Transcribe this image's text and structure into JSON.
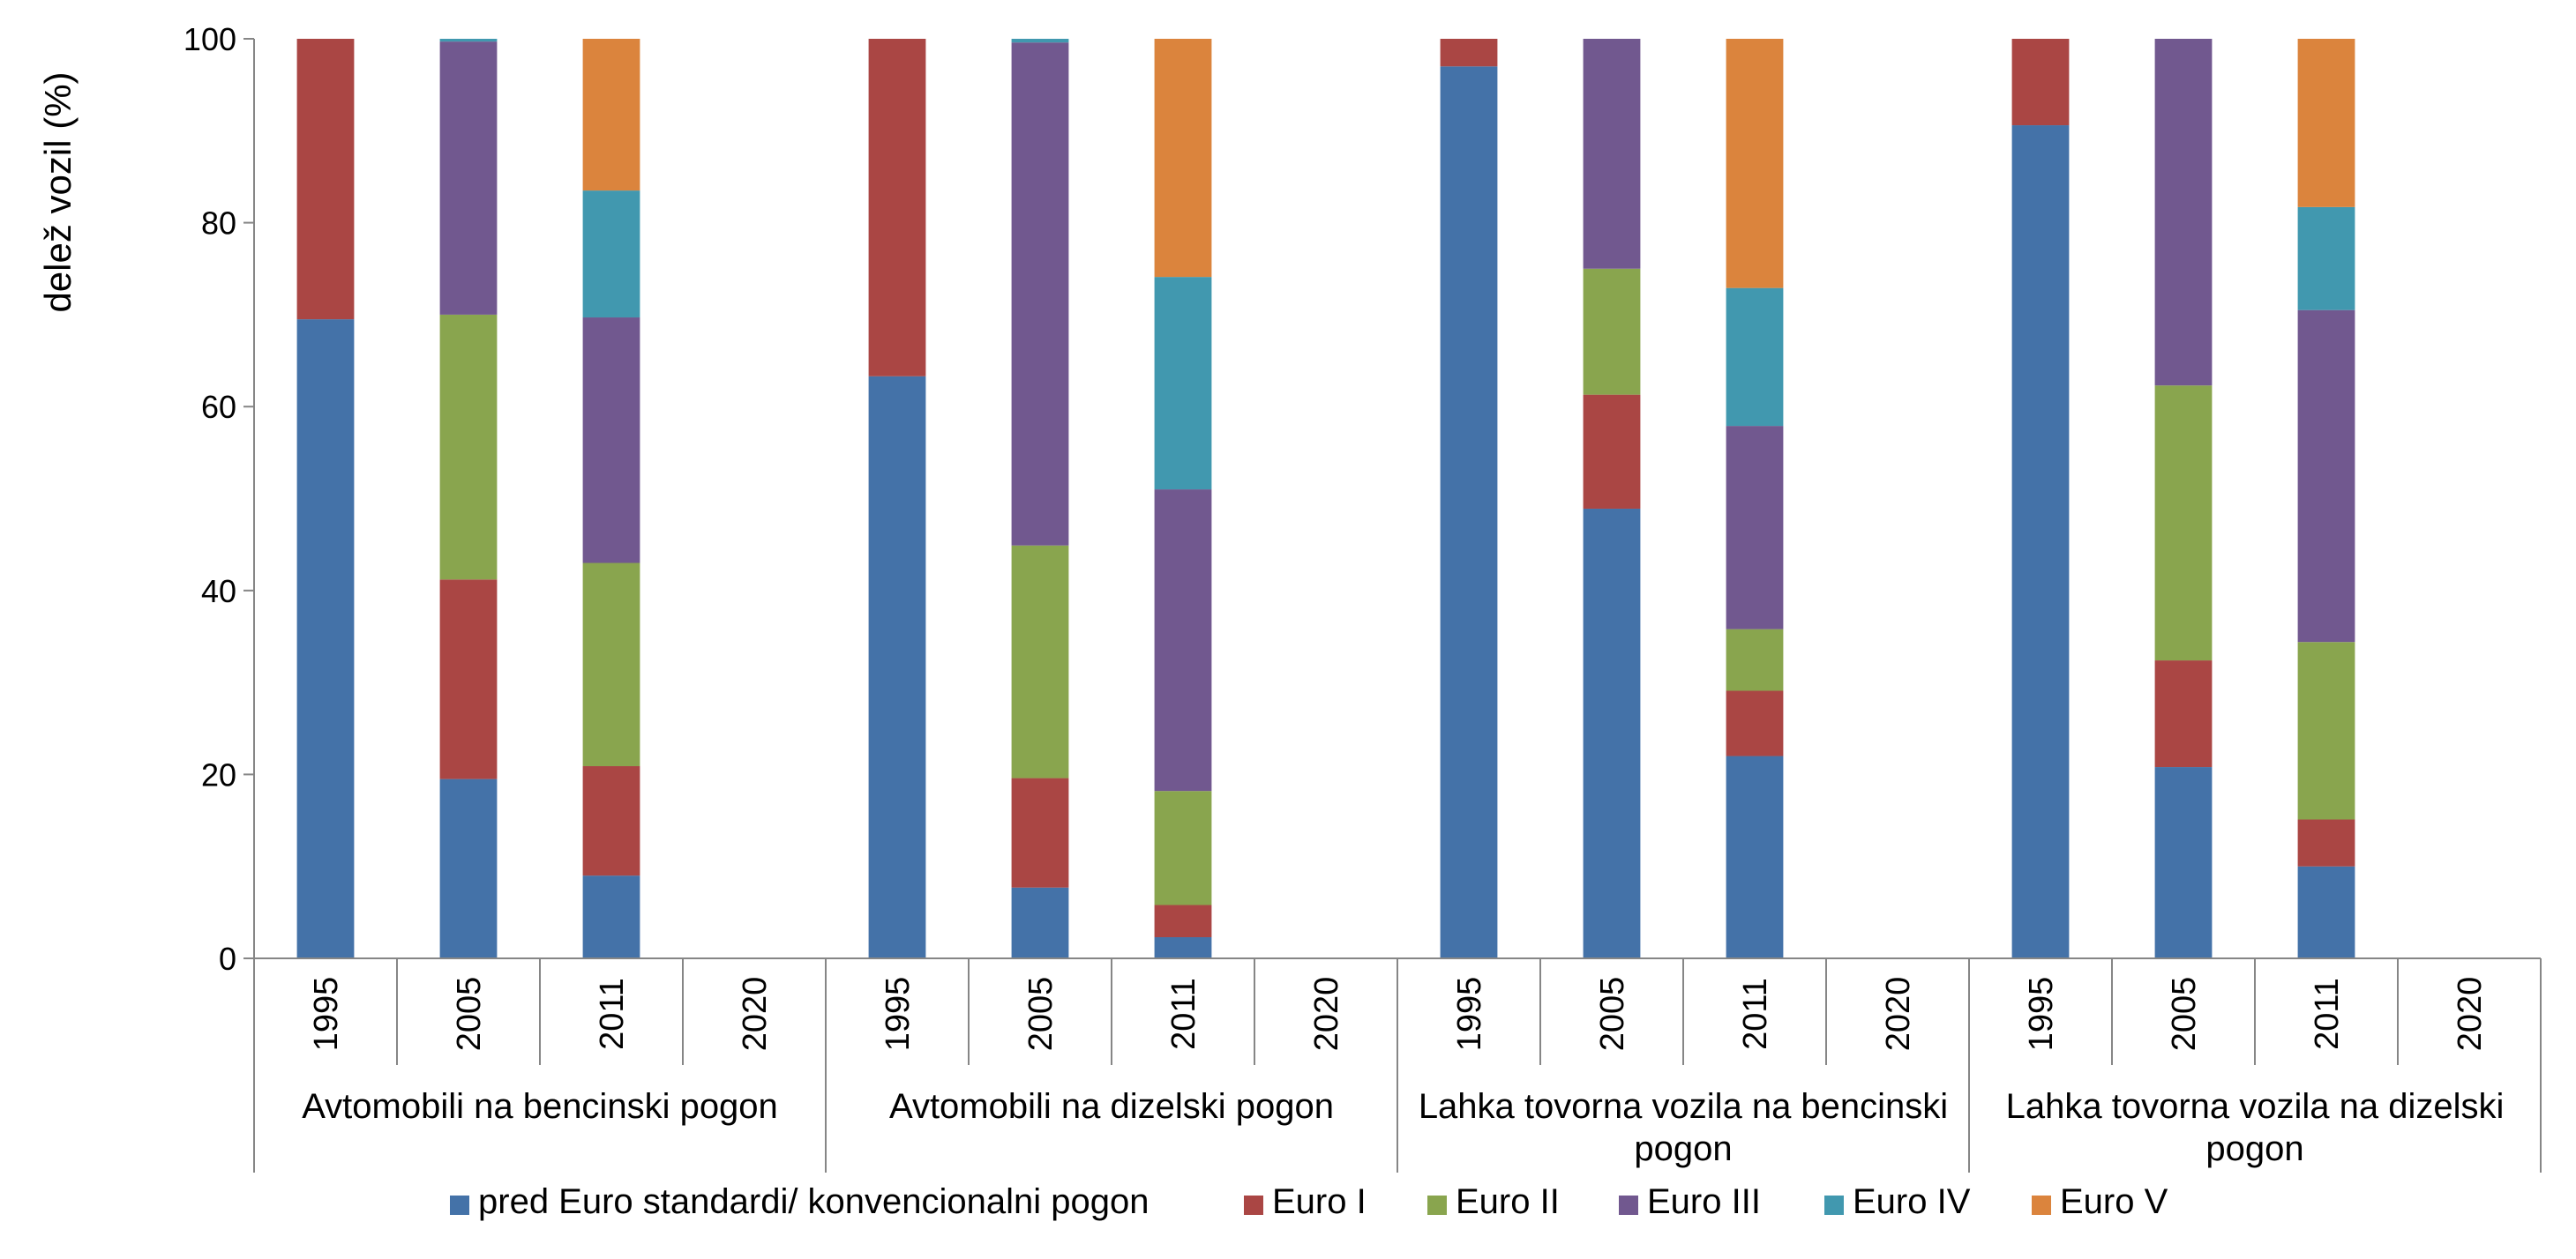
{
  "chart_data": {
    "type": "bar",
    "stacked": true,
    "ylabel": "delež  vozil (%)",
    "xlabel": "",
    "ylim": [
      0,
      100
    ],
    "yticks": [
      "0",
      "20",
      "40",
      "60",
      "80",
      "100"
    ],
    "grid": false,
    "legend_position": "bottom",
    "groups": [
      {
        "label_lines": [
          "Avtomobili na bencinski pogon"
        ],
        "categories": [
          "1995",
          "2005",
          "2011",
          "2020"
        ]
      },
      {
        "label_lines": [
          "Avtomobili na dizelski pogon"
        ],
        "categories": [
          "1995",
          "2005",
          "2011",
          "2020"
        ]
      },
      {
        "label_lines": [
          "Lahka tovorna vozila na bencinski",
          "pogon"
        ],
        "categories": [
          "1995",
          "2005",
          "2011",
          "2020"
        ]
      },
      {
        "label_lines": [
          "Lahka tovorna vozila na dizelski",
          "pogon"
        ],
        "categories": [
          "1995",
          "2005",
          "2011",
          "2020"
        ]
      }
    ],
    "series": [
      {
        "name": "pred Euro standardi/ konvencionalni  pogon",
        "color": "#4472A8",
        "values": [
          69.5,
          19.5,
          9,
          0,
          63.3,
          7.7,
          2.3,
          0,
          97,
          48.9,
          22,
          0,
          90.6,
          20.8,
          10,
          0
        ]
      },
      {
        "name": "Euro I",
        "color": "#AA4644",
        "values": [
          30.5,
          21.7,
          11.9,
          0,
          36.7,
          11.9,
          3.5,
          0,
          3,
          12.4,
          7.1,
          0,
          9.4,
          11.6,
          5.1,
          0
        ]
      },
      {
        "name": "Euro II",
        "color": "#89A54E",
        "values": [
          0,
          28.8,
          22.1,
          0,
          0,
          25.3,
          12.4,
          0,
          0,
          13.7,
          6.7,
          0,
          0,
          29.9,
          19.3,
          0
        ]
      },
      {
        "name": "Euro III",
        "color": "#71588F",
        "values": [
          0,
          29.7,
          26.7,
          0,
          0,
          54.7,
          32.8,
          0,
          0,
          25,
          22.1,
          0,
          0,
          37.7,
          36.1,
          0
        ]
      },
      {
        "name": "Euro IV",
        "color": "#4198AF",
        "values": [
          0,
          0.3,
          13.8,
          0,
          0,
          0.4,
          23.1,
          0,
          0,
          0,
          15,
          0,
          0,
          0,
          11.2,
          0
        ]
      },
      {
        "name": "Euro V",
        "color": "#DB843D",
        "values": [
          0,
          0,
          16.5,
          0,
          0,
          0,
          25.9,
          0,
          0,
          0,
          27.1,
          0,
          0,
          0,
          18.3,
          0
        ]
      }
    ]
  }
}
